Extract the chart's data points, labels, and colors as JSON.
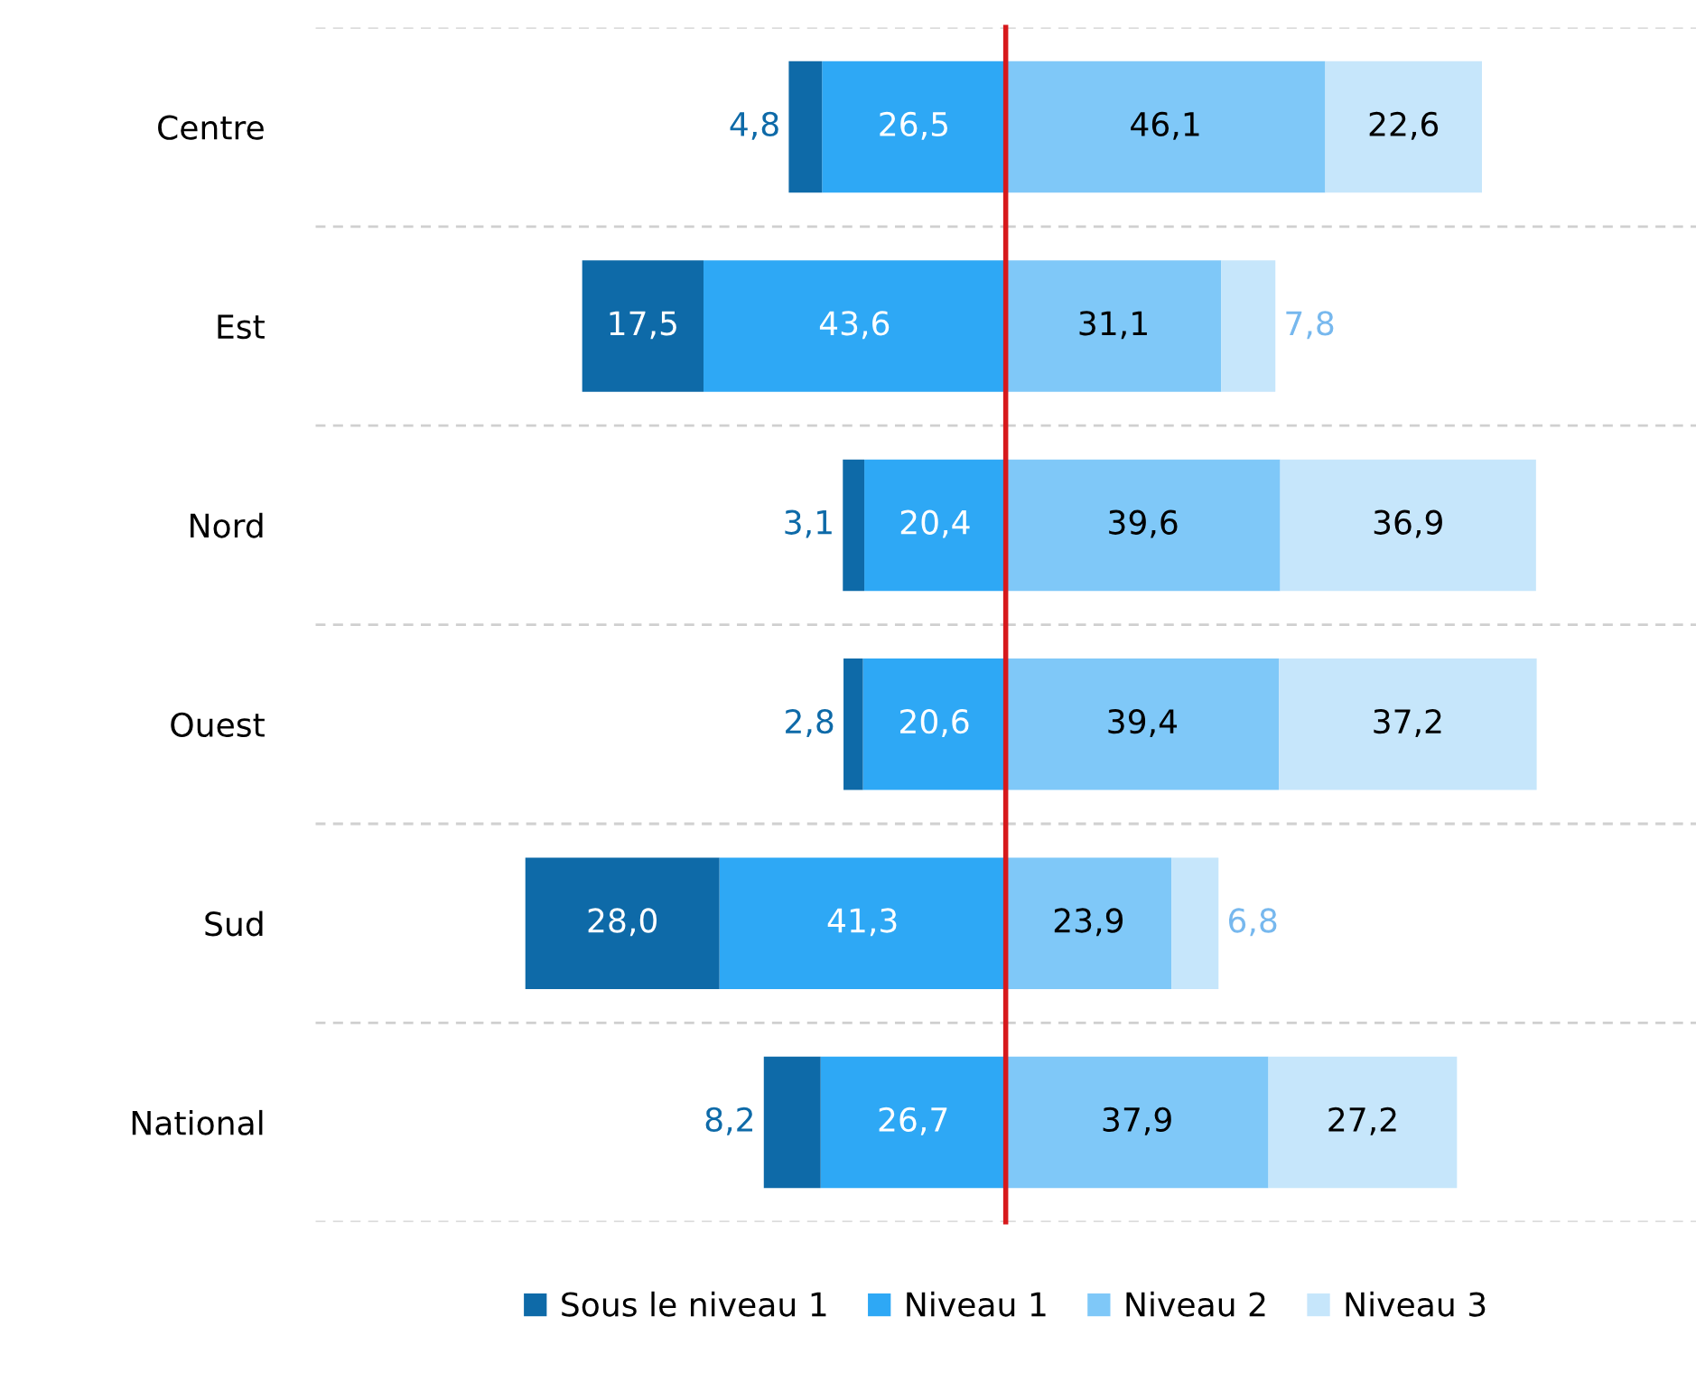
{
  "chart_data": [
    {
      "type": "bar",
      "orientation": "horizontal",
      "stacked": true,
      "categories": [
        "Centre",
        "Est",
        "Nord",
        "Ouest",
        "Sud",
        "National"
      ],
      "tick_labels": "y",
      "series": [
        {
          "name": "Niveau 1",
          "color": "#2ea8f5",
          "values": [
            26.5,
            43.6,
            20.4,
            20.6,
            41.3,
            26.7
          ],
          "value_labels": [
            "26,5",
            "43,6",
            "20,4",
            "20,6",
            "41,3",
            "26,7"
          ]
        },
        {
          "name": "Sous le niveau 1",
          "color": "#0e6aa8",
          "values": [
            4.8,
            17.5,
            3.1,
            2.8,
            28.0,
            8.2
          ],
          "value_labels": [
            "4,8",
            "17,5",
            "3,1",
            "2,8",
            "28,0",
            "8,2"
          ]
        }
      ],
      "grid": "y",
      "legend": "bottom"
    },
    {
      "type": "bar",
      "orientation": "horizontal",
      "stacked": true,
      "tick_labels": false,
      "series": [
        {
          "name": "Niveau 2",
          "color": "#7fc8f8",
          "values": [
            46.1,
            31.1,
            39.6,
            39.4,
            23.9,
            37.9
          ],
          "value_labels": [
            "46,1",
            "31,1",
            "39,6",
            "39,4",
            "23,9",
            "37,9"
          ]
        },
        {
          "name": "Niveau 3",
          "color": "#c6e6fb",
          "values": [
            22.6,
            7.8,
            36.9,
            37.2,
            6.8,
            27.2
          ],
          "value_labels": [
            "22,6",
            "7,8",
            "36,9",
            "37,2",
            "6,8",
            "27,2"
          ]
        }
      ],
      "grid": "y",
      "legend": "bottom"
    }
  ]
}
